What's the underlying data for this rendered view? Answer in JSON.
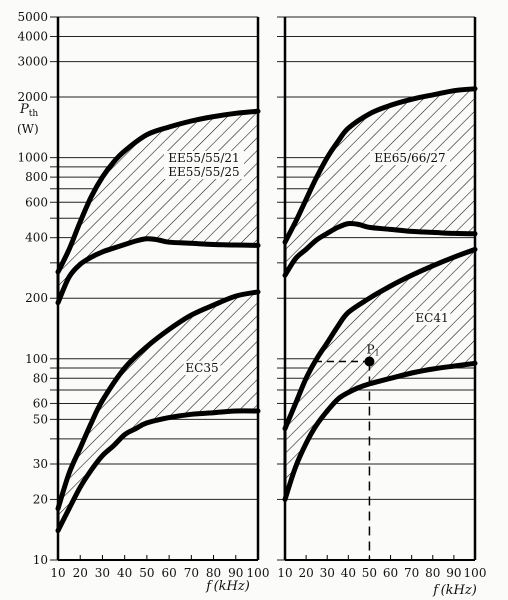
{
  "chart_data": {
    "type": "area",
    "x_unit_label": "f (kHz)",
    "y_label": "P_th",
    "y_label_main": "P",
    "y_label_sub": "th",
    "y_unit": "(W)",
    "y_scale": "log",
    "ylim": [
      10,
      5000
    ],
    "xlim": [
      10,
      100
    ],
    "x_ticks": [
      10,
      20,
      30,
      40,
      50,
      60,
      70,
      80,
      90,
      100
    ],
    "x_tick_labels": [
      "10",
      "20",
      "30",
      "40",
      "50",
      "60",
      "70",
      "80",
      "90",
      "100"
    ],
    "y_ticks": [
      10,
      20,
      30,
      50,
      60,
      80,
      100,
      200,
      400,
      600,
      800,
      1000,
      2000,
      3000,
      4000,
      5000
    ],
    "y_tick_labels": [
      "10",
      "20",
      "30",
      "50",
      "60",
      "80",
      "100",
      "200",
      "400",
      "600",
      "800",
      "1000",
      "2000",
      "3000",
      "4000",
      "5000"
    ],
    "grid_lines_y": [
      10,
      20,
      30,
      40,
      50,
      60,
      70,
      80,
      90,
      100,
      200,
      300,
      400,
      500,
      600,
      700,
      800,
      900,
      1000,
      2000,
      3000,
      4000,
      5000
    ],
    "panels": [
      {
        "bands": [
          {
            "label_lines": [
              "EE55/55/21",
              "EE55/55/25"
            ],
            "upper": [
              [
                10,
                270
              ],
              [
                15,
                350
              ],
              [
                20,
                480
              ],
              [
                25,
                640
              ],
              [
                30,
                800
              ],
              [
                35,
                950
              ],
              [
                40,
                1080
              ],
              [
                50,
                1300
              ],
              [
                60,
                1420
              ],
              [
                70,
                1520
              ],
              [
                80,
                1600
              ],
              [
                90,
                1660
              ],
              [
                100,
                1700
              ]
            ],
            "lower": [
              [
                10,
                190
              ],
              [
                15,
                255
              ],
              [
                20,
                295
              ],
              [
                25,
                320
              ],
              [
                30,
                340
              ],
              [
                35,
                355
              ],
              [
                40,
                370
              ],
              [
                45,
                385
              ],
              [
                50,
                395
              ],
              [
                55,
                390
              ],
              [
                60,
                380
              ],
              [
                70,
                375
              ],
              [
                80,
                370
              ],
              [
                90,
                368
              ],
              [
                100,
                366
              ]
            ]
          },
          {
            "label_lines": [
              "EC35"
            ],
            "upper": [
              [
                10,
                18
              ],
              [
                15,
                27
              ],
              [
                20,
                36
              ],
              [
                25,
                48
              ],
              [
                30,
                62
              ],
              [
                40,
                90
              ],
              [
                50,
                115
              ],
              [
                60,
                140
              ],
              [
                70,
                165
              ],
              [
                80,
                185
              ],
              [
                90,
                205
              ],
              [
                100,
                215
              ]
            ],
            "lower": [
              [
                10,
                14
              ],
              [
                15,
                18
              ],
              [
                20,
                23
              ],
              [
                25,
                28
              ],
              [
                30,
                33
              ],
              [
                35,
                37
              ],
              [
                40,
                42
              ],
              [
                45,
                45
              ],
              [
                50,
                48
              ],
              [
                60,
                51
              ],
              [
                70,
                53
              ],
              [
                80,
                54
              ],
              [
                90,
                55
              ],
              [
                100,
                55
              ]
            ]
          }
        ]
      },
      {
        "bands": [
          {
            "label_lines": [
              "EE65/66/27"
            ],
            "upper": [
              [
                10,
                380
              ],
              [
                15,
                480
              ],
              [
                20,
                620
              ],
              [
                25,
                800
              ],
              [
                30,
                1000
              ],
              [
                35,
                1200
              ],
              [
                40,
                1400
              ],
              [
                50,
                1650
              ],
              [
                60,
                1820
              ],
              [
                70,
                1950
              ],
              [
                80,
                2050
              ],
              [
                90,
                2150
              ],
              [
                100,
                2200
              ]
            ],
            "lower": [
              [
                10,
                260
              ],
              [
                15,
                315
              ],
              [
                20,
                350
              ],
              [
                25,
                390
              ],
              [
                30,
                420
              ],
              [
                35,
                450
              ],
              [
                40,
                470
              ],
              [
                45,
                465
              ],
              [
                50,
                450
              ],
              [
                60,
                440
              ],
              [
                70,
                430
              ],
              [
                80,
                425
              ],
              [
                90,
                420
              ],
              [
                100,
                418
              ]
            ]
          },
          {
            "label_lines": [
              "EC41"
            ],
            "upper": [
              [
                10,
                45
              ],
              [
                15,
                60
              ],
              [
                20,
                80
              ],
              [
                25,
                100
              ],
              [
                30,
                120
              ],
              [
                35,
                145
              ],
              [
                40,
                170
              ],
              [
                50,
                200
              ],
              [
                60,
                230
              ],
              [
                70,
                260
              ],
              [
                80,
                290
              ],
              [
                90,
                320
              ],
              [
                100,
                350
              ]
            ],
            "lower": [
              [
                10,
                20
              ],
              [
                15,
                29
              ],
              [
                20,
                38
              ],
              [
                25,
                47
              ],
              [
                30,
                55
              ],
              [
                35,
                63
              ],
              [
                40,
                68
              ],
              [
                45,
                72
              ],
              [
                50,
                75
              ],
              [
                60,
                80
              ],
              [
                70,
                85
              ],
              [
                80,
                89
              ],
              [
                90,
                92
              ],
              [
                100,
                95
              ]
            ]
          }
        ]
      }
    ],
    "annotation": {
      "label": "P",
      "label_sub": "1",
      "panel": 2,
      "x": 50,
      "y": 97
    }
  }
}
